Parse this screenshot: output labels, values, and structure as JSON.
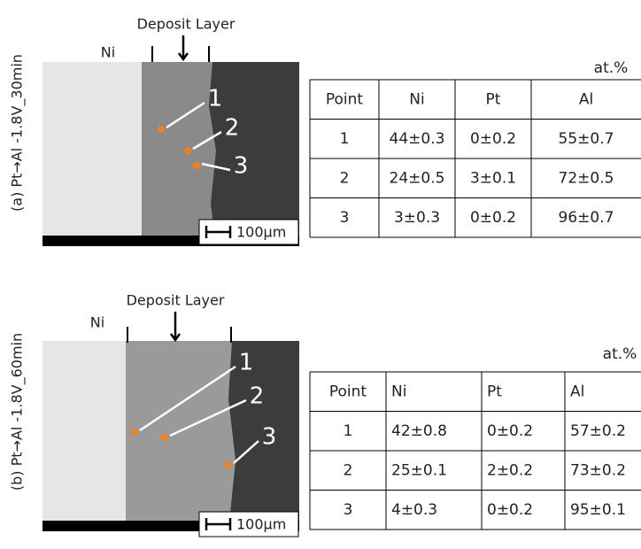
{
  "panels": [
    {
      "label": "(a) Pt→Al -1.8V_30min",
      "deposit_label": "Deposit Layer",
      "ni_label": "Ni",
      "points": [
        "1",
        "2",
        "3"
      ],
      "scale_bar": "100μm",
      "unit": "at.%",
      "table": {
        "header": [
          "Point",
          "Ni",
          "Pt",
          "Al"
        ],
        "rows": [
          [
            "1",
            "44±0.3",
            "0±0.2",
            "55±0.7"
          ],
          [
            "2",
            "24±0.5",
            "3±0.1",
            "72±0.5"
          ],
          [
            "3",
            "3±0.3",
            "0±0.2",
            "96±0.7"
          ]
        ]
      }
    },
    {
      "label": "(b) Pt→Al -1.8V_60min",
      "deposit_label": "Deposit Layer",
      "ni_label": "Ni",
      "points": [
        "1",
        "2",
        "3"
      ],
      "scale_bar": "100μm",
      "unit": "at.%",
      "table": {
        "header": [
          "Point",
          "Ni",
          "Pt",
          "Al"
        ],
        "rows": [
          [
            "1",
            "42±0.8",
            "0±0.2",
            "57±0.2"
          ],
          [
            "2",
            "25±0.1",
            "2±0.2",
            "73±0.2"
          ],
          [
            "3",
            "4±0.3",
            "0±0.2",
            "95±0.1"
          ]
        ]
      }
    }
  ]
}
